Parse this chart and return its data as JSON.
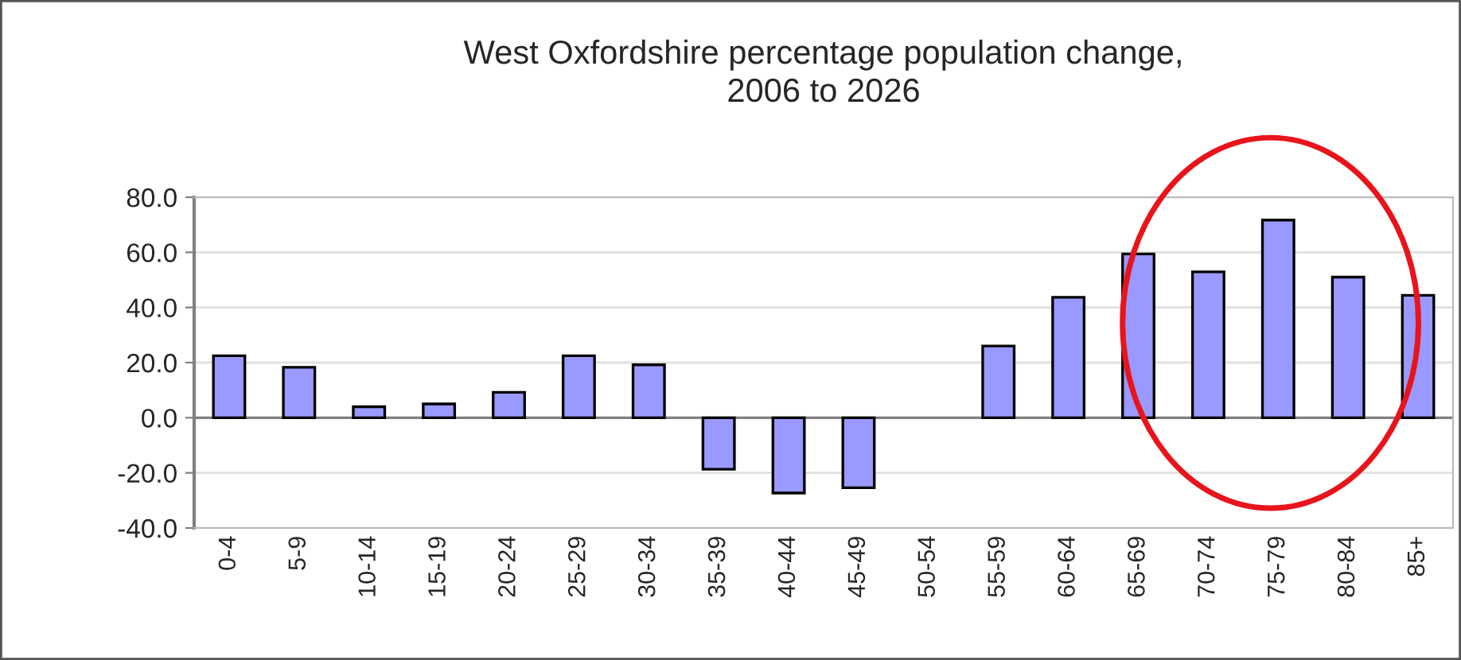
{
  "chart_data": {
    "type": "bar",
    "title": "West Oxfordshire percentage population change,\n2006 to 2026",
    "categories": [
      "0-4",
      "5-9",
      "10-14",
      "15-19",
      "20-24",
      "25-29",
      "30-34",
      "35-39",
      "40-44",
      "45-49",
      "50-54",
      "55-59",
      "60-64",
      "65-69",
      "70-74",
      "75-79",
      "80-84",
      "85+"
    ],
    "series": [
      {
        "color": "#9999ff",
        "values": [
          22.5,
          18.3,
          4.0,
          5.0,
          9.2,
          22.5,
          19.2,
          -18.7,
          -27.3,
          -25.4,
          null,
          26.0,
          43.7,
          59.4,
          52.9,
          71.7,
          51.0,
          44.4
        ]
      }
    ],
    "ylim": [
      -40,
      80
    ],
    "yticks": [
      {
        "value": -40,
        "label": "-40.0"
      },
      {
        "value": -20,
        "label": "-20.0"
      },
      {
        "value": 0,
        "label": "0.0"
      },
      {
        "value": 20,
        "label": "20.0"
      },
      {
        "value": 40,
        "label": "40.0"
      },
      {
        "value": 60,
        "label": "60.0"
      },
      {
        "value": 80,
        "label": "80.0"
      }
    ],
    "grid": "y",
    "legend": false
  }
}
